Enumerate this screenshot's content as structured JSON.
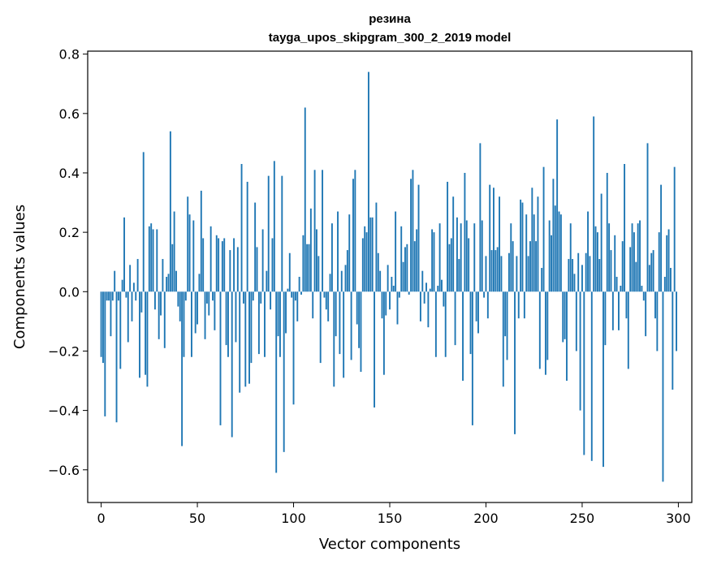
{
  "chart_data": {
    "type": "bar",
    "title": "резина",
    "subtitle": "tayga_upos_skipgram_300_2_2019 model",
    "xlabel": "Vector components",
    "ylabel": "Components values",
    "xlim": [
      -7,
      307
    ],
    "ylim": [
      -0.71,
      0.81
    ],
    "xticks": [
      0,
      50,
      100,
      150,
      200,
      250,
      300
    ],
    "yticks": [
      -0.6,
      -0.4,
      -0.2,
      0.0,
      0.2,
      0.4,
      0.6,
      0.8
    ],
    "xtick_labels": [
      "0",
      "50",
      "100",
      "150",
      "200",
      "250",
      "300"
    ],
    "ytick_labels": [
      "−0.6",
      "−0.4",
      "−0.2",
      "0.0",
      "0.2",
      "0.4",
      "0.6",
      "0.8"
    ],
    "bar_color": "#1f77b4",
    "grid": false,
    "x": [
      0,
      1,
      2,
      3,
      4,
      5,
      6,
      7,
      8,
      9,
      10,
      11,
      12,
      13,
      14,
      15,
      16,
      17,
      18,
      19,
      20,
      21,
      22,
      23,
      24,
      25,
      26,
      27,
      28,
      29,
      30,
      31,
      32,
      33,
      34,
      35,
      36,
      37,
      38,
      39,
      40,
      41,
      42,
      43,
      44,
      45,
      46,
      47,
      48,
      49,
      50,
      51,
      52,
      53,
      54,
      55,
      56,
      57,
      58,
      59,
      60,
      61,
      62,
      63,
      64,
      65,
      66,
      67,
      68,
      69,
      70,
      71,
      72,
      73,
      74,
      75,
      76,
      77,
      78,
      79,
      80,
      81,
      82,
      83,
      84,
      85,
      86,
      87,
      88,
      89,
      90,
      91,
      92,
      93,
      94,
      95,
      96,
      97,
      98,
      99,
      100,
      101,
      102,
      103,
      104,
      105,
      106,
      107,
      108,
      109,
      110,
      111,
      112,
      113,
      114,
      115,
      116,
      117,
      118,
      119,
      120,
      121,
      122,
      123,
      124,
      125,
      126,
      127,
      128,
      129,
      130,
      131,
      132,
      133,
      134,
      135,
      136,
      137,
      138,
      139,
      140,
      141,
      142,
      143,
      144,
      145,
      146,
      147,
      148,
      149,
      150,
      151,
      152,
      153,
      154,
      155,
      156,
      157,
      158,
      159,
      160,
      161,
      162,
      163,
      164,
      165,
      166,
      167,
      168,
      169,
      170,
      171,
      172,
      173,
      174,
      175,
      176,
      177,
      178,
      179,
      180,
      181,
      182,
      183,
      184,
      185,
      186,
      187,
      188,
      189,
      190,
      191,
      192,
      193,
      194,
      195,
      196,
      197,
      198,
      199,
      200,
      201,
      202,
      203,
      204,
      205,
      206,
      207,
      208,
      209,
      210,
      211,
      212,
      213,
      214,
      215,
      216,
      217,
      218,
      219,
      220,
      221,
      222,
      223,
      224,
      225,
      226,
      227,
      228,
      229,
      230,
      231,
      232,
      233,
      234,
      235,
      236,
      237,
      238,
      239,
      240,
      241,
      242,
      243,
      244,
      245,
      246,
      247,
      248,
      249,
      250,
      251,
      252,
      253,
      254,
      255,
      256,
      257,
      258,
      259,
      260,
      261,
      262,
      263,
      264,
      265,
      266,
      267,
      268,
      269,
      270,
      271,
      272,
      273,
      274,
      275,
      276,
      277,
      278,
      279,
      280,
      281,
      282,
      283,
      284,
      285,
      286,
      287,
      288,
      289,
      290,
      291,
      292,
      293,
      294,
      295,
      296,
      297,
      298,
      299
    ],
    "values": [
      -0.22,
      -0.24,
      -0.42,
      -0.03,
      -0.03,
      -0.15,
      -0.03,
      0.07,
      -0.44,
      -0.03,
      -0.26,
      0.04,
      0.25,
      -0.02,
      -0.17,
      0.09,
      -0.1,
      0.03,
      -0.03,
      0.11,
      -0.29,
      -0.07,
      0.47,
      -0.28,
      -0.32,
      0.22,
      0.23,
      0.21,
      -0.06,
      0.21,
      -0.16,
      -0.08,
      0.11,
      -0.19,
      0.05,
      0.06,
      0.54,
      0.16,
      0.27,
      0.07,
      -0.05,
      -0.1,
      -0.52,
      -0.22,
      -0.03,
      0.32,
      0.26,
      -0.22,
      0.24,
      -0.14,
      -0.11,
      0.06,
      0.34,
      0.18,
      -0.16,
      -0.04,
      -0.08,
      0.22,
      -0.03,
      -0.13,
      0.19,
      0.18,
      -0.45,
      0.17,
      0.18,
      -0.18,
      -0.22,
      0.14,
      -0.49,
      0.18,
      -0.17,
      0.15,
      -0.34,
      0.43,
      -0.04,
      -0.32,
      0.37,
      -0.31,
      -0.24,
      -0.03,
      0.3,
      0.15,
      -0.21,
      -0.04,
      0.21,
      -0.22,
      0.07,
      0.39,
      -0.06,
      0.18,
      0.44,
      -0.61,
      -0.15,
      -0.22,
      0.39,
      -0.54,
      -0.14,
      0.01,
      0.13,
      -0.02,
      -0.38,
      -0.03,
      -0.1,
      0.05,
      -0.01,
      0.19,
      0.62,
      0.16,
      0.16,
      0.28,
      -0.09,
      0.41,
      0.21,
      0.12,
      -0.24,
      0.41,
      -0.02,
      -0.06,
      -0.1,
      0.06,
      0.23,
      -0.32,
      -0.15,
      0.27,
      -0.21,
      0.07,
      -0.29,
      0.09,
      0.14,
      0.26,
      -0.23,
      0.38,
      0.41,
      -0.11,
      -0.19,
      -0.27,
      0.18,
      0.22,
      0.2,
      0.74,
      0.25,
      0.25,
      -0.39,
      0.3,
      0.13,
      0.07,
      -0.09,
      -0.28,
      -0.08,
      0.09,
      -0.06,
      0.05,
      0.02,
      0.27,
      -0.11,
      -0.02,
      0.22,
      0.1,
      0.15,
      0.16,
      -0.01,
      0.38,
      0.41,
      0.17,
      0.21,
      0.36,
      -0.1,
      0.07,
      -0.04,
      0.03,
      -0.12,
      0.01,
      0.21,
      0.2,
      -0.22,
      0.02,
      0.23,
      0.04,
      -0.05,
      -0.22,
      0.37,
      0.16,
      0.18,
      0.32,
      -0.18,
      0.25,
      0.11,
      0.23,
      -0.3,
      0.4,
      0.24,
      0.18,
      -0.21,
      -0.45,
      0.23,
      -0.1,
      -0.14,
      0.5,
      0.24,
      -0.02,
      0.12,
      -0.09,
      0.36,
      0.14,
      0.35,
      0.14,
      0.15,
      0.32,
      0.12,
      -0.32,
      -0.15,
      -0.23,
      0.13,
      0.23,
      0.17,
      -0.48,
      0.12,
      -0.09,
      0.31,
      0.3,
      -0.09,
      0.26,
      0.12,
      0.17,
      0.35,
      0.26,
      0.17,
      0.32,
      -0.26,
      0.08,
      0.42,
      -0.28,
      -0.23,
      0.24,
      0.19,
      0.38,
      0.29,
      0.58,
      0.27,
      0.26,
      -0.17,
      -0.16,
      -0.3,
      0.11,
      0.23,
      0.11,
      0.06,
      -0.2,
      0.13,
      -0.4,
      0.09,
      -0.55,
      0.13,
      0.27,
      0.12,
      -0.57,
      0.59,
      0.22,
      0.2,
      0.11,
      0.33,
      -0.59,
      -0.18,
      0.4,
      0.23,
      0.14,
      -0.13,
      0.19,
      0.05,
      -0.13,
      0.02,
      0.17,
      0.43,
      -0.09,
      -0.26,
      0.15,
      0.23,
      0.2,
      0.1,
      0.23,
      0.24,
      0.02,
      -0.03,
      -0.15,
      0.5,
      0.09,
      0.13,
      0.14,
      -0.09,
      -0.2,
      0.2,
      0.36,
      -0.64,
      0.05,
      0.19,
      0.21,
      0.08,
      -0.33,
      0.42,
      -0.2
    ]
  }
}
